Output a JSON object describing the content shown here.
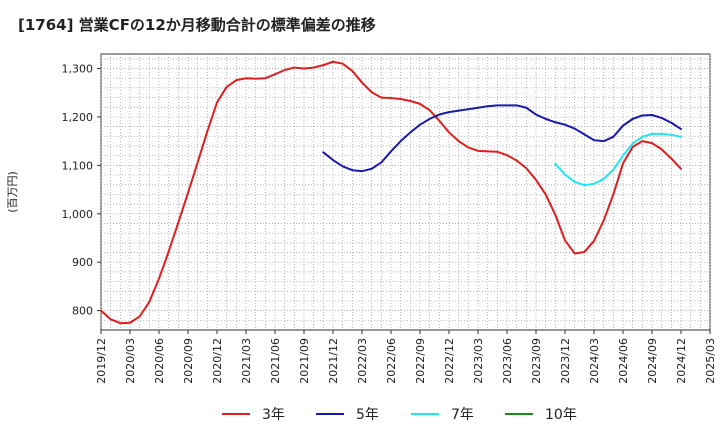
{
  "chart_data": {
    "type": "line",
    "title": "[1764]  営業CFの12か月移動合計の標準偏差の推移",
    "ylabel": "(百万円)",
    "xlabel": "",
    "ylim": [
      760,
      1330
    ],
    "yticks": [
      800,
      900,
      1000,
      1100,
      1200,
      1300
    ],
    "ytick_labels": [
      "800",
      "900",
      "1,000",
      "1,100",
      "1,200",
      "1,300"
    ],
    "xlim": [
      "2019-12",
      "2025-03"
    ],
    "xticks": [
      "2019/12",
      "2020/03",
      "2020/06",
      "2020/09",
      "2020/12",
      "2021/03",
      "2021/06",
      "2021/09",
      "2021/12",
      "2022/03",
      "2022/06",
      "2022/09",
      "2022/12",
      "2023/03",
      "2023/06",
      "2023/09",
      "2023/12",
      "2024/03",
      "2024/06",
      "2024/09",
      "2024/12",
      "2025/03"
    ],
    "grid": true,
    "legend_position": "bottom",
    "series": [
      {
        "name": "3年",
        "color": "#dd1f1f",
        "points": [
          [
            "2019-12",
            800
          ],
          [
            "2020-01",
            782
          ],
          [
            "2020-02",
            774
          ],
          [
            "2020-03",
            775
          ],
          [
            "2020-04",
            788
          ],
          [
            "2020-05",
            818
          ],
          [
            "2020-06",
            866
          ],
          [
            "2020-07",
            922
          ],
          [
            "2020-08",
            982
          ],
          [
            "2020-09",
            1043
          ],
          [
            "2020-10",
            1106
          ],
          [
            "2020-11",
            1170
          ],
          [
            "2020-12",
            1230
          ],
          [
            "2021-01",
            1262
          ],
          [
            "2021-02",
            1276
          ],
          [
            "2021-03",
            1280
          ],
          [
            "2021-04",
            1279
          ],
          [
            "2021-05",
            1280
          ],
          [
            "2021-06",
            1288
          ],
          [
            "2021-07",
            1297
          ],
          [
            "2021-08",
            1302
          ],
          [
            "2021-09",
            1300
          ],
          [
            "2021-10",
            1302
          ],
          [
            "2021-11",
            1307
          ],
          [
            "2021-12",
            1314
          ],
          [
            "2022-01",
            1310
          ],
          [
            "2022-02",
            1295
          ],
          [
            "2022-03",
            1271
          ],
          [
            "2022-04",
            1251
          ],
          [
            "2022-05",
            1240
          ],
          [
            "2022-06",
            1239
          ],
          [
            "2022-07",
            1237
          ],
          [
            "2022-08",
            1233
          ],
          [
            "2022-09",
            1227
          ],
          [
            "2022-10",
            1214
          ],
          [
            "2022-11",
            1192
          ],
          [
            "2022-12",
            1168
          ],
          [
            "2023-01",
            1150
          ],
          [
            "2023-02",
            1137
          ],
          [
            "2023-03",
            1130
          ],
          [
            "2023-04",
            1129
          ],
          [
            "2023-05",
            1128
          ],
          [
            "2023-06",
            1121
          ],
          [
            "2023-07",
            1110
          ],
          [
            "2023-08",
            1094
          ],
          [
            "2023-09",
            1070
          ],
          [
            "2023-10",
            1040
          ],
          [
            "2023-11",
            998
          ],
          [
            "2023-12",
            945
          ],
          [
            "2024-01",
            918
          ],
          [
            "2024-02",
            921
          ],
          [
            "2024-03",
            944
          ],
          [
            "2024-04",
            986
          ],
          [
            "2024-05",
            1040
          ],
          [
            "2024-06",
            1104
          ],
          [
            "2024-07",
            1138
          ],
          [
            "2024-08",
            1150
          ],
          [
            "2024-09",
            1146
          ],
          [
            "2024-10",
            1133
          ],
          [
            "2024-11",
            1114
          ],
          [
            "2024-12",
            1093
          ]
        ]
      },
      {
        "name": "5年",
        "color": "#1a1aaa",
        "points": [
          [
            "2021-11",
            1127
          ],
          [
            "2021-12",
            1111
          ],
          [
            "2022-01",
            1098
          ],
          [
            "2022-02",
            1090
          ],
          [
            "2022-03",
            1088
          ],
          [
            "2022-04",
            1093
          ],
          [
            "2022-05",
            1106
          ],
          [
            "2022-06",
            1129
          ],
          [
            "2022-07",
            1150
          ],
          [
            "2022-08",
            1168
          ],
          [
            "2022-09",
            1184
          ],
          [
            "2022-10",
            1196
          ],
          [
            "2022-11",
            1205
          ],
          [
            "2022-12",
            1210
          ],
          [
            "2023-01",
            1213
          ],
          [
            "2023-02",
            1216
          ],
          [
            "2023-03",
            1219
          ],
          [
            "2023-04",
            1222
          ],
          [
            "2023-05",
            1224
          ],
          [
            "2023-06",
            1224
          ],
          [
            "2023-07",
            1224
          ],
          [
            "2023-08",
            1219
          ],
          [
            "2023-09",
            1205
          ],
          [
            "2023-10",
            1196
          ],
          [
            "2023-11",
            1189
          ],
          [
            "2023-12",
            1184
          ],
          [
            "2024-01",
            1176
          ],
          [
            "2024-02",
            1164
          ],
          [
            "2024-03",
            1152
          ],
          [
            "2024-04",
            1150
          ],
          [
            "2024-05",
            1159
          ],
          [
            "2024-06",
            1182
          ],
          [
            "2024-07",
            1196
          ],
          [
            "2024-08",
            1203
          ],
          [
            "2024-09",
            1204
          ],
          [
            "2024-10",
            1198
          ],
          [
            "2024-11",
            1188
          ],
          [
            "2024-12",
            1175
          ]
        ]
      },
      {
        "name": "7年",
        "color": "#22e5f0",
        "points": [
          [
            "2023-11",
            1103
          ],
          [
            "2023-12",
            1081
          ],
          [
            "2024-01",
            1066
          ],
          [
            "2024-02",
            1059
          ],
          [
            "2024-03",
            1062
          ],
          [
            "2024-04",
            1072
          ],
          [
            "2024-05",
            1091
          ],
          [
            "2024-06",
            1120
          ],
          [
            "2024-07",
            1145
          ],
          [
            "2024-08",
            1159
          ],
          [
            "2024-09",
            1165
          ],
          [
            "2024-10",
            1165
          ],
          [
            "2024-11",
            1163
          ],
          [
            "2024-12",
            1159
          ]
        ]
      },
      {
        "name": "10年",
        "color": "#1a8a1a",
        "points": []
      }
    ]
  }
}
